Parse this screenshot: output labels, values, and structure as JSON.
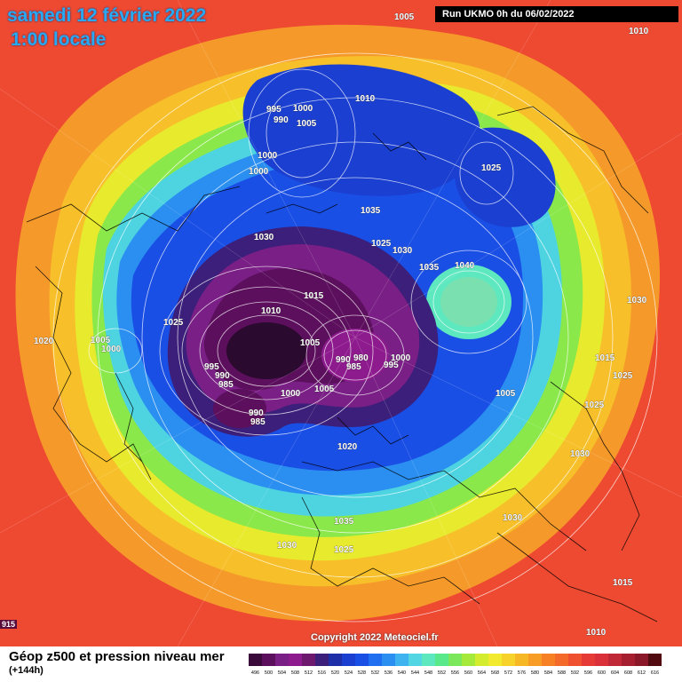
{
  "header": {
    "date": "samedi 12 février 2022",
    "time": "1:00 locale",
    "run": "Run UKMO 0h du 06/02/2022"
  },
  "copyright": "Copyright 2022 Meteociel.fr",
  "corner_label": "915",
  "footer": {
    "title": "Géop z500 et pression niveau mer",
    "subtitle": "(+144h)"
  },
  "scale": {
    "values": [
      "496",
      "500",
      "504",
      "508",
      "512",
      "516",
      "520",
      "524",
      "528",
      "532",
      "536",
      "540",
      "544",
      "548",
      "552",
      "556",
      "560",
      "564",
      "568",
      "572",
      "576",
      "580",
      "584",
      "588",
      "592",
      "596",
      "600",
      "604",
      "608",
      "612",
      "616"
    ],
    "colors": [
      "#3a0a3a",
      "#5c0f5c",
      "#7a1f85",
      "#8e1b8e",
      "#6d1a6e",
      "#3b1f7a",
      "#1f2fa8",
      "#1a3fd1",
      "#1a4fe6",
      "#1f6ff0",
      "#2a8ff0",
      "#3fb3ef",
      "#52d6e3",
      "#5ee8c0",
      "#59e88a",
      "#7ae85a",
      "#a5ea3a",
      "#d3ec2e",
      "#f2ea2e",
      "#f7d22a",
      "#f7b825",
      "#f79c25",
      "#f78025",
      "#f36a2a",
      "#ee5030",
      "#e63a36",
      "#d9303a",
      "#c02838",
      "#a51f30",
      "#8a1828",
      "#500a10"
    ]
  },
  "isobars": [
    {
      "text": "1005",
      "pos": "top"
    },
    {
      "text": "1010",
      "pos": "top-right"
    },
    {
      "text": "995"
    },
    {
      "text": "990"
    },
    {
      "text": "1000"
    },
    {
      "text": "1005"
    },
    {
      "text": "1010"
    },
    {
      "text": "1000"
    },
    {
      "text": "1000"
    },
    {
      "text": "1025"
    },
    {
      "text": "1035"
    },
    {
      "text": "1030"
    },
    {
      "text": "1025"
    },
    {
      "text": "1030"
    },
    {
      "text": "1035"
    },
    {
      "text": "1040"
    },
    {
      "text": "1030"
    },
    {
      "text": "1015"
    },
    {
      "text": "1010"
    },
    {
      "text": "1025"
    },
    {
      "text": "1020"
    },
    {
      "text": "1005"
    },
    {
      "text": "1000"
    },
    {
      "text": "1005"
    },
    {
      "text": "995"
    },
    {
      "text": "990"
    },
    {
      "text": "985"
    },
    {
      "text": "980"
    },
    {
      "text": "990"
    },
    {
      "text": "985"
    },
    {
      "text": "995"
    },
    {
      "text": "1000"
    },
    {
      "text": "1000"
    },
    {
      "text": "1005"
    },
    {
      "text": "990"
    },
    {
      "text": "985"
    },
    {
      "text": "1015"
    },
    {
      "text": "1025"
    },
    {
      "text": "1005"
    },
    {
      "text": "1025"
    },
    {
      "text": "1020"
    },
    {
      "text": "1030"
    },
    {
      "text": "1035"
    },
    {
      "text": "1030"
    },
    {
      "text": "1025"
    },
    {
      "text": "1030"
    },
    {
      "text": "1015"
    },
    {
      "text": "1010"
    }
  ]
}
